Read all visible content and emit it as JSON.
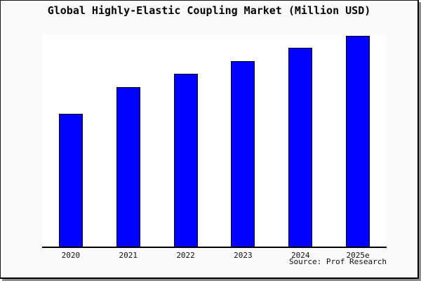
{
  "title": "Global Highly-Elastic Coupling Market (Million USD)",
  "source_credit": "Source: Prof Research",
  "colors": {
    "bar_fill": "#0000ff",
    "bar_border": "#000000",
    "figure_background": "#fafafa",
    "plot_background": "#ffffff",
    "axis": "#000000",
    "shadow": "#8f8f8f"
  },
  "chart_data": {
    "type": "bar",
    "title": "Global Highly-Elastic Coupling Market (Million USD)",
    "categories": [
      "2020",
      "2021",
      "2022",
      "2023",
      "2024",
      "2025e"
    ],
    "values": [
      63.0,
      75.7,
      82.0,
      88.0,
      94.3,
      100.0
    ],
    "value_note": "relative scale, tallest bar (2025e) = 100; chart shows no numeric y-axis",
    "xlabel": "",
    "ylabel": "",
    "ylim": [
      0,
      100.7
    ],
    "grid": false,
    "legend": false,
    "annotation": "Source: Prof Research"
  }
}
